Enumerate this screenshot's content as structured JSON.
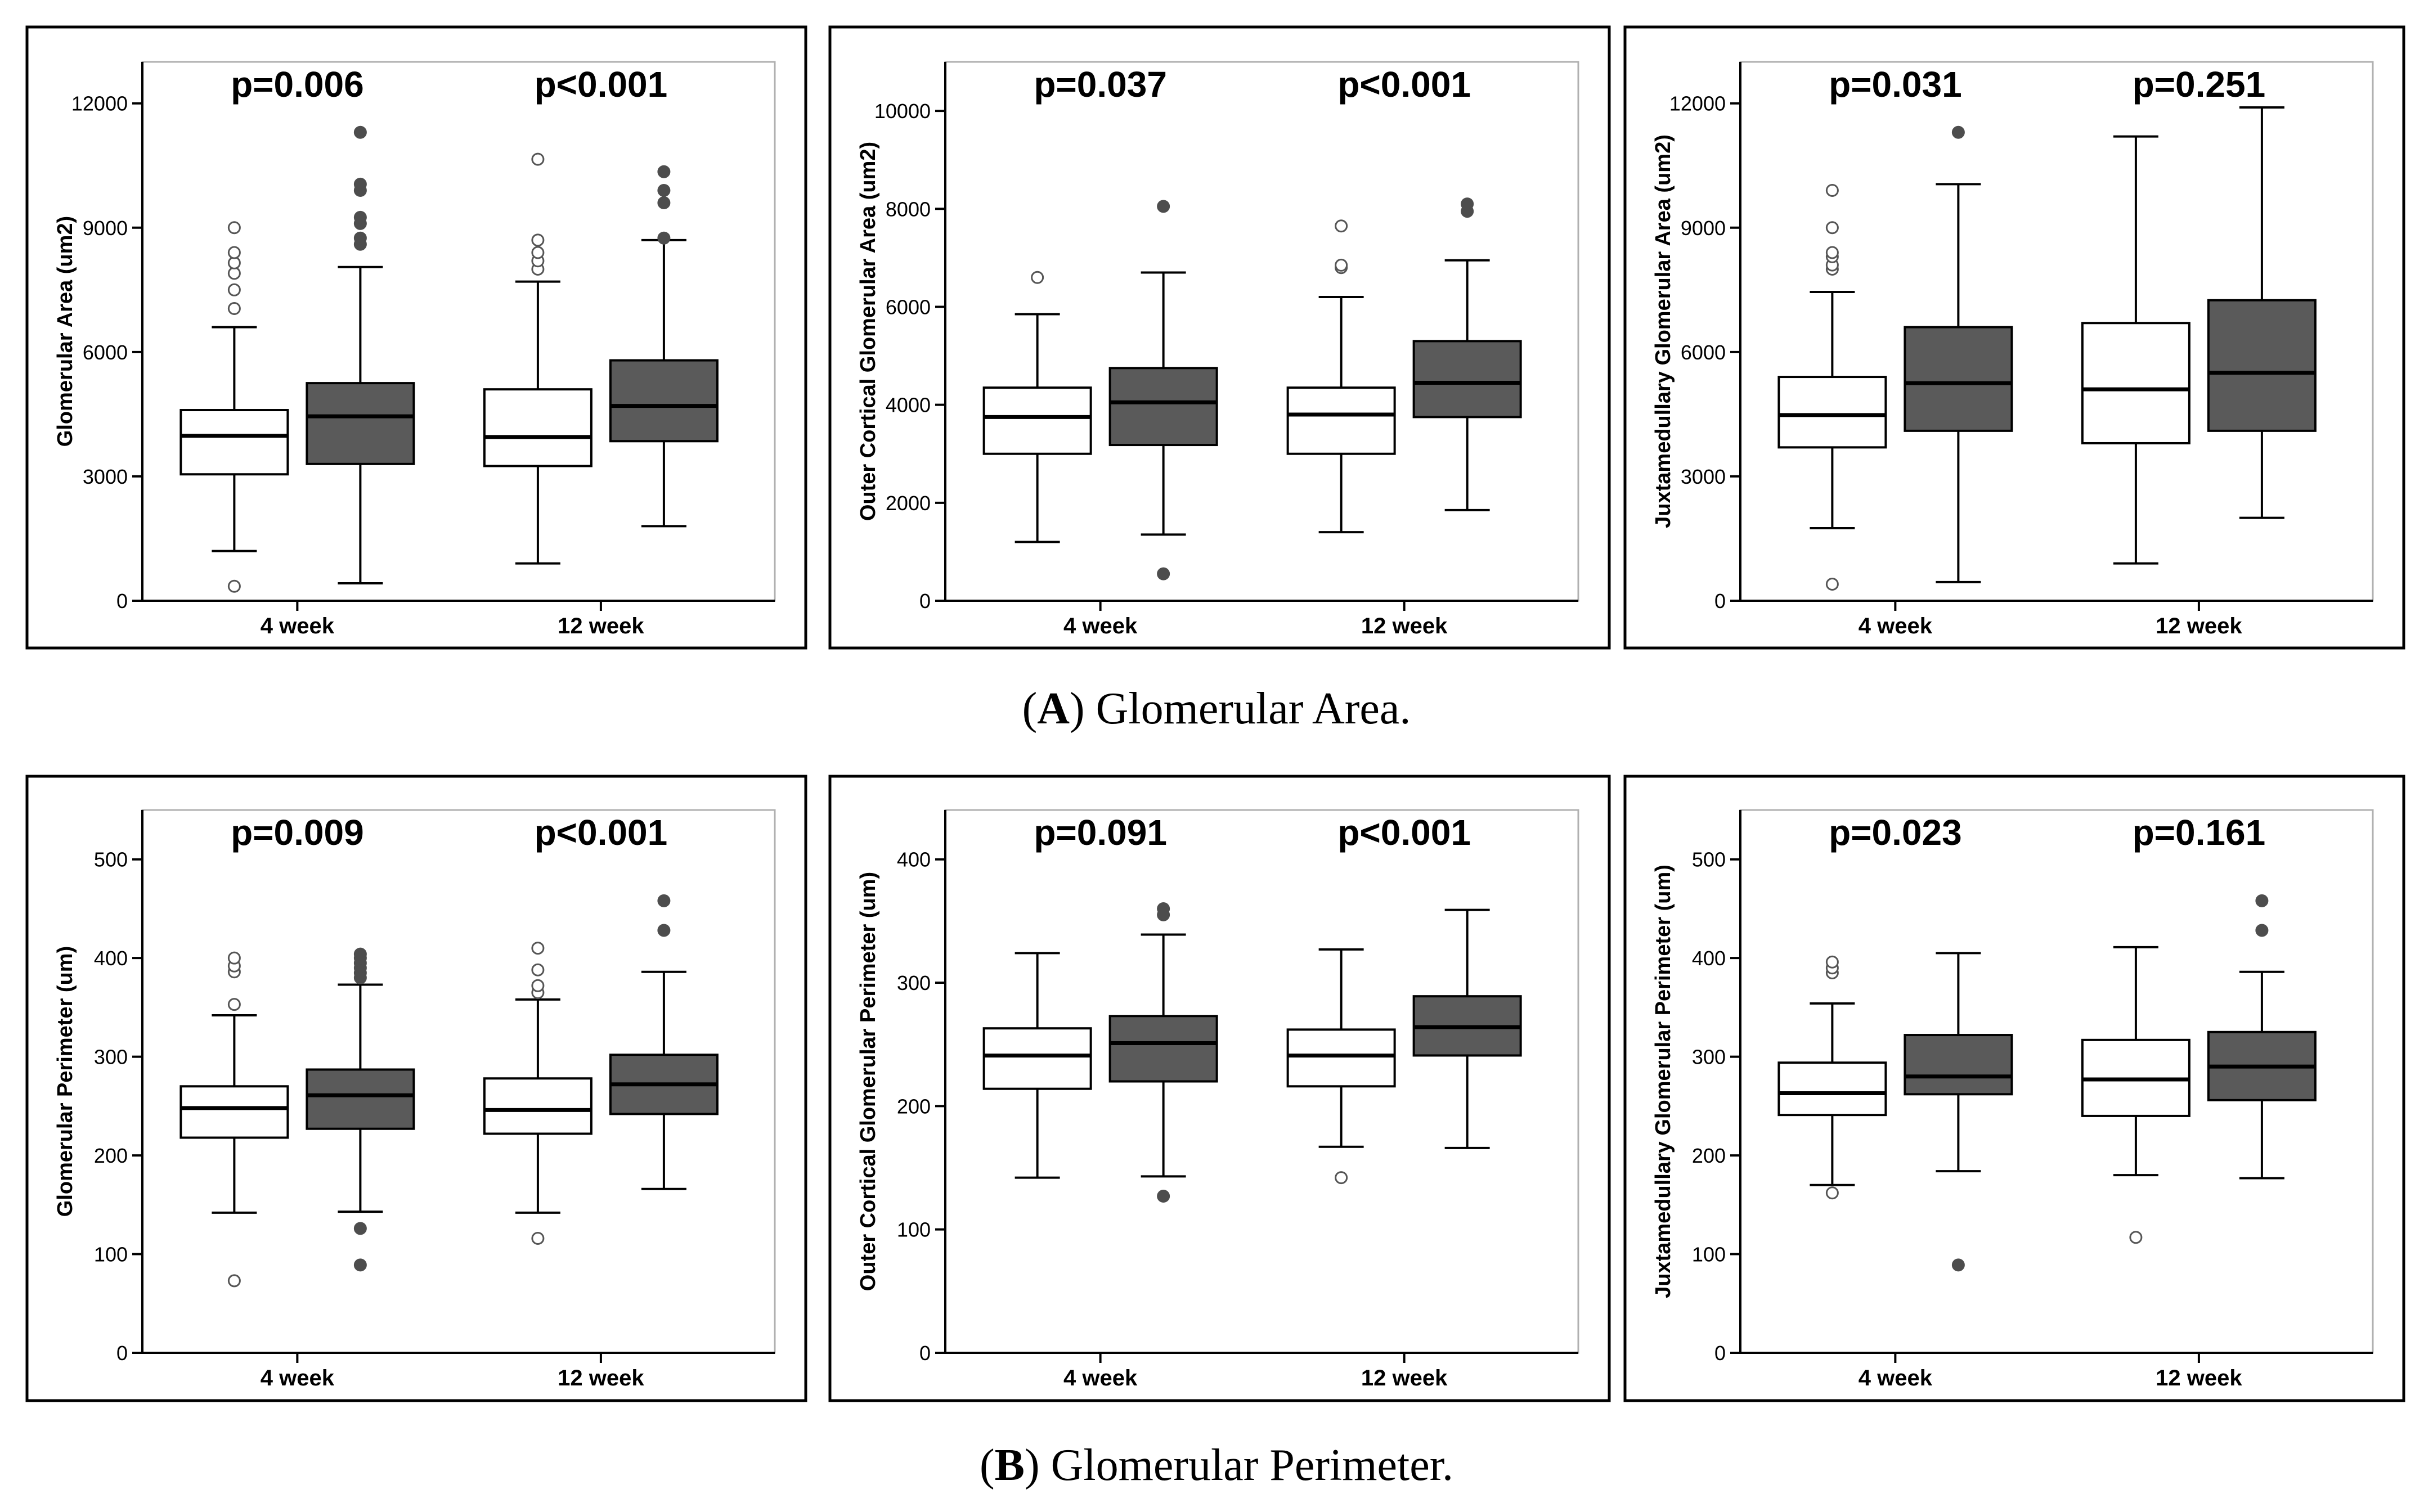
{
  "captions": {
    "a": {
      "letter": "A",
      "text": "Glomerular Area."
    },
    "b": {
      "letter": "B",
      "text": "Glomerular Perimeter."
    }
  },
  "colors": {
    "white_box": "#ffffff",
    "dark_box": "#5a5a5a",
    "frame": "#000000",
    "outlier_dark": "#4d4d4d"
  },
  "chart_data": [
    {
      "type": "box",
      "row": 0,
      "col": 0,
      "ylabel": "Glomerular Area (um2)",
      "ylim": [
        0,
        13000
      ],
      "yticks": [
        0,
        3000,
        6000,
        9000,
        12000
      ],
      "categories": [
        "4 week",
        "12 week"
      ],
      "pvalues": [
        "p=0.006",
        "p<0.001"
      ],
      "boxes": [
        {
          "group": "4 week",
          "fill": "white",
          "whisker_low": 1200,
          "q1": 3050,
          "median": 3980,
          "q3": 4600,
          "whisker_high": 6600,
          "outliers": [
            350,
            7050,
            7500,
            7900,
            8150,
            8400,
            9000
          ]
        },
        {
          "group": "4 week",
          "fill": "dark",
          "whisker_low": 420,
          "q1": 3300,
          "median": 4450,
          "q3": 5250,
          "whisker_high": 8050,
          "outliers": [
            8600,
            8750,
            9100,
            9250,
            9900,
            10050,
            11300
          ]
        },
        {
          "group": "12 week",
          "fill": "white",
          "whisker_low": 900,
          "q1": 3250,
          "median": 3950,
          "q3": 5100,
          "whisker_high": 7700,
          "outliers": [
            8000,
            8200,
            8400,
            8700,
            10650
          ]
        },
        {
          "group": "12 week",
          "fill": "dark",
          "whisker_low": 1800,
          "q1": 3850,
          "median": 4700,
          "q3": 5800,
          "whisker_high": 8700,
          "outliers": [
            8750,
            9600,
            9900,
            10350
          ]
        }
      ]
    },
    {
      "type": "box",
      "row": 0,
      "col": 1,
      "ylabel": "Outer Cortical Glomerular Area (um2)",
      "ylim": [
        0,
        11000
      ],
      "yticks": [
        0,
        2000,
        4000,
        6000,
        8000,
        10000
      ],
      "categories": [
        "4 week",
        "12 week"
      ],
      "pvalues": [
        "p=0.037",
        "p<0.001"
      ],
      "boxes": [
        {
          "group": "4 week",
          "fill": "white",
          "whisker_low": 1200,
          "q1": 3000,
          "median": 3750,
          "q3": 4350,
          "whisker_high": 5850,
          "outliers": [
            6600
          ]
        },
        {
          "group": "4 week",
          "fill": "dark",
          "whisker_low": 1350,
          "q1": 3180,
          "median": 4050,
          "q3": 4750,
          "whisker_high": 6700,
          "outliers": [
            550,
            8050
          ]
        },
        {
          "group": "12 week",
          "fill": "white",
          "whisker_low": 1400,
          "q1": 3000,
          "median": 3800,
          "q3": 4350,
          "whisker_high": 6200,
          "outliers": [
            6800,
            6850,
            7650
          ]
        },
        {
          "group": "12 week",
          "fill": "dark",
          "whisker_low": 1850,
          "q1": 3750,
          "median": 4450,
          "q3": 5300,
          "whisker_high": 6950,
          "outliers": [
            7950,
            8100
          ]
        }
      ]
    },
    {
      "type": "box",
      "row": 0,
      "col": 2,
      "ylabel": "Juxtamedullary Glomerular Area (um2)",
      "ylim": [
        0,
        13000
      ],
      "yticks": [
        0,
        3000,
        6000,
        9000,
        12000
      ],
      "categories": [
        "4 week",
        "12 week"
      ],
      "pvalues": [
        "p=0.031",
        "p=0.251"
      ],
      "boxes": [
        {
          "group": "4 week",
          "fill": "white",
          "whisker_low": 1750,
          "q1": 3700,
          "median": 4480,
          "q3": 5400,
          "whisker_high": 7450,
          "outliers": [
            400,
            8000,
            8100,
            8300,
            8400,
            9000,
            9900
          ]
        },
        {
          "group": "4 week",
          "fill": "dark",
          "whisker_low": 450,
          "q1": 4100,
          "median": 5250,
          "q3": 6600,
          "whisker_high": 10050,
          "outliers": [
            11300
          ]
        },
        {
          "group": "12 week",
          "fill": "white",
          "whisker_low": 900,
          "q1": 3800,
          "median": 5100,
          "q3": 6700,
          "whisker_high": 11200,
          "outliers": []
        },
        {
          "group": "12 week",
          "fill": "dark",
          "whisker_low": 2000,
          "q1": 4100,
          "median": 5500,
          "q3": 7250,
          "whisker_high": 11900,
          "outliers": []
        }
      ]
    },
    {
      "type": "box",
      "row": 1,
      "col": 0,
      "ylabel": "Glomerular Perimeter (um)",
      "ylim": [
        0,
        550
      ],
      "yticks": [
        0,
        100,
        200,
        300,
        400,
        500
      ],
      "categories": [
        "4 week",
        "12 week"
      ],
      "pvalues": [
        "p=0.009",
        "p<0.001"
      ],
      "boxes": [
        {
          "group": "4 week",
          "fill": "white",
          "whisker_low": 142,
          "q1": 218,
          "median": 248,
          "q3": 270,
          "whisker_high": 342,
          "outliers": [
            73,
            353,
            386,
            392,
            400
          ]
        },
        {
          "group": "4 week",
          "fill": "dark",
          "whisker_low": 143,
          "q1": 227,
          "median": 261,
          "q3": 287,
          "whisker_high": 373,
          "outliers": [
            89,
            126,
            380,
            385,
            390,
            395,
            400,
            404
          ]
        },
        {
          "group": "12 week",
          "fill": "white",
          "whisker_low": 142,
          "q1": 222,
          "median": 246,
          "q3": 278,
          "whisker_high": 358,
          "outliers": [
            116,
            365,
            372,
            388,
            410
          ]
        },
        {
          "group": "12 week",
          "fill": "dark",
          "whisker_low": 166,
          "q1": 242,
          "median": 272,
          "q3": 302,
          "whisker_high": 386,
          "outliers": [
            428,
            458
          ]
        }
      ]
    },
    {
      "type": "box",
      "row": 1,
      "col": 1,
      "ylabel": "Outer Cortical Glomerular Perimeter (um)",
      "ylim": [
        0,
        440
      ],
      "yticks": [
        0,
        100,
        200,
        300,
        400
      ],
      "categories": [
        "4 week",
        "12 week"
      ],
      "pvalues": [
        "p=0.091",
        "p<0.001"
      ],
      "boxes": [
        {
          "group": "4 week",
          "fill": "white",
          "whisker_low": 142,
          "q1": 214,
          "median": 241,
          "q3": 263,
          "whisker_high": 324,
          "outliers": []
        },
        {
          "group": "4 week",
          "fill": "dark",
          "whisker_low": 143,
          "q1": 220,
          "median": 251,
          "q3": 273,
          "whisker_high": 339,
          "outliers": [
            127,
            355,
            360
          ]
        },
        {
          "group": "12 week",
          "fill": "white",
          "whisker_low": 167,
          "q1": 216,
          "median": 241,
          "q3": 262,
          "whisker_high": 327,
          "outliers": [
            142
          ]
        },
        {
          "group": "12 week",
          "fill": "dark",
          "whisker_low": 166,
          "q1": 241,
          "median": 264,
          "q3": 289,
          "whisker_high": 359,
          "outliers": []
        }
      ]
    },
    {
      "type": "box",
      "row": 1,
      "col": 2,
      "ylabel": "Juxtamedullary Glomerular Perimeter (um)",
      "ylim": [
        0,
        550
      ],
      "yticks": [
        0,
        100,
        200,
        300,
        400,
        500
      ],
      "categories": [
        "4 week",
        "12 week"
      ],
      "pvalues": [
        "p=0.023",
        "p=0.161"
      ],
      "boxes": [
        {
          "group": "4 week",
          "fill": "white",
          "whisker_low": 170,
          "q1": 241,
          "median": 263,
          "q3": 294,
          "whisker_high": 354,
          "outliers": [
            162,
            385,
            390,
            396
          ]
        },
        {
          "group": "4 week",
          "fill": "dark",
          "whisker_low": 184,
          "q1": 262,
          "median": 280,
          "q3": 322,
          "whisker_high": 405,
          "outliers": [
            89
          ]
        },
        {
          "group": "12 week",
          "fill": "white",
          "whisker_low": 180,
          "q1": 240,
          "median": 277,
          "q3": 317,
          "whisker_high": 411,
          "outliers": [
            117
          ]
        },
        {
          "group": "12 week",
          "fill": "dark",
          "whisker_low": 177,
          "q1": 256,
          "median": 290,
          "q3": 325,
          "whisker_high": 386,
          "outliers": [
            428,
            458
          ]
        }
      ]
    }
  ]
}
